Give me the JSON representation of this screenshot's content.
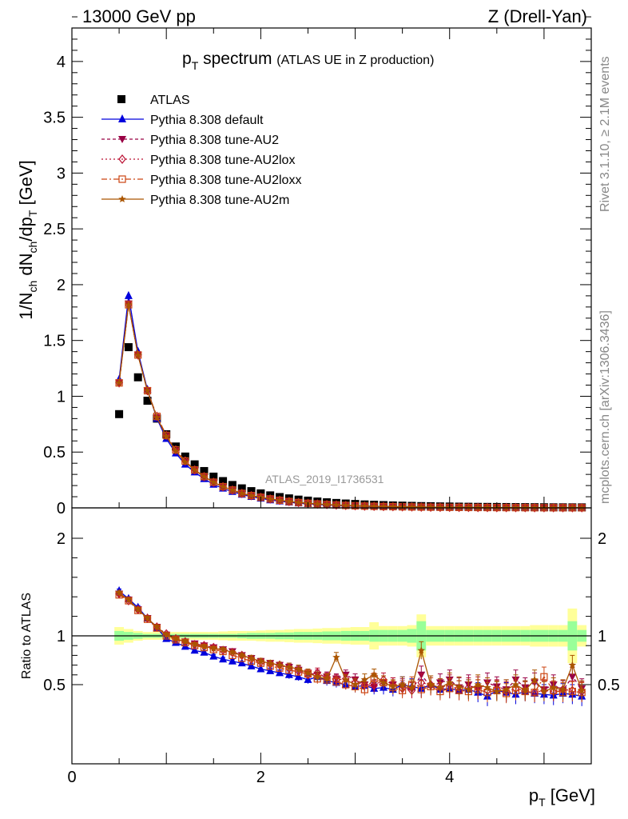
{
  "header": {
    "left": "13000 GeV pp",
    "right": "Z (Drell-Yan)"
  },
  "side_labels": {
    "rivet": "Rivet 3.1.10, ≥ 2.1M events",
    "mcplots": "mcplots.cern.ch [arXiv:1306.3436]"
  },
  "colors": {
    "atlas": "#000000",
    "default": "#0000dd",
    "au2": "#990044",
    "au2lox": "#bb1133",
    "au2loxx": "#cc4411",
    "au2m": "#aa5500",
    "band_inner": "#99ff99",
    "band_outer": "#ffff99"
  },
  "chart_data": [
    {
      "type": "scatter",
      "title_main": "p",
      "title_sub": "T",
      "title_rest": " spectrum",
      "title_note": "(ATLAS UE in Z production)",
      "analysis_label": "ATLAS_2019_I1736531",
      "ylabel": "1/N_ch dN_ch/dp_T [GeV]",
      "xlim": [
        0,
        5.5
      ],
      "ylim": [
        0,
        4.3
      ],
      "yticks": [
        "0",
        "0.5",
        "1",
        "1.5",
        "2",
        "2.5",
        "3",
        "3.5",
        "4"
      ],
      "legend_position": "top-left",
      "x": [
        0.5,
        0.6,
        0.7,
        0.8,
        0.9,
        1.0,
        1.1,
        1.2,
        1.3,
        1.4,
        1.5,
        1.6,
        1.7,
        1.8,
        1.9,
        2.0,
        2.1,
        2.2,
        2.3,
        2.4,
        2.5,
        2.6,
        2.7,
        2.8,
        2.9,
        3.0,
        3.1,
        3.2,
        3.3,
        3.4,
        3.5,
        3.6,
        3.7,
        3.8,
        3.9,
        4.0,
        4.1,
        4.2,
        4.3,
        4.4,
        4.5,
        4.6,
        4.7,
        4.8,
        4.9,
        5.0,
        5.1,
        5.2,
        5.3,
        5.4
      ],
      "series": [
        {
          "name": "ATLAS",
          "values": [
            0.84,
            1.44,
            1.17,
            0.96,
            0.8,
            0.66,
            0.55,
            0.46,
            0.39,
            0.33,
            0.28,
            0.24,
            0.205,
            0.175,
            0.15,
            0.13,
            0.112,
            0.097,
            0.085,
            0.074,
            0.065,
            0.057,
            0.05,
            0.044,
            0.039,
            0.035,
            0.031,
            0.028,
            0.025,
            0.022,
            0.02,
            0.018,
            0.016,
            0.015,
            0.013,
            0.012,
            0.011,
            0.01,
            0.009,
            0.0085,
            0.008,
            0.0075,
            0.007,
            0.0065,
            0.006,
            0.0055,
            0.005,
            0.0048,
            0.0046,
            0.0044
          ]
        },
        {
          "name": "Pythia 8.308 default",
          "values": [
            1.15,
            1.9,
            1.4,
            1.06,
            0.8,
            0.62,
            0.49,
            0.39,
            0.32,
            0.26,
            0.21,
            0.175,
            0.145,
            0.12,
            0.1,
            0.085,
            0.07,
            0.06,
            0.05,
            0.042,
            0.036,
            0.031,
            0.026,
            0.022,
            0.019,
            0.016,
            0.014,
            0.012,
            0.011,
            0.009,
            0.008,
            0.007,
            0.006,
            0.0055,
            0.005,
            0.0045,
            0.004,
            0.0036,
            0.0033,
            0.003,
            0.0027,
            0.0025,
            0.0023,
            0.0021,
            0.0019,
            0.0017,
            0.0016,
            0.0015,
            0.0014,
            0.0013
          ]
        },
        {
          "name": "Pythia 8.308 tune-AU2",
          "values": [
            1.12,
            1.83,
            1.37,
            1.05,
            0.81,
            0.64,
            0.51,
            0.41,
            0.34,
            0.28,
            0.23,
            0.19,
            0.16,
            0.13,
            0.11,
            0.095,
            0.08,
            0.068,
            0.057,
            0.048,
            0.041,
            0.035,
            0.03,
            0.026,
            0.022,
            0.019,
            0.016,
            0.014,
            0.012,
            0.011,
            0.0095,
            0.0083,
            0.0072,
            0.0063,
            0.0055,
            0.0049,
            0.0043,
            0.0038,
            0.0034,
            0.003,
            0.0027,
            0.0024,
            0.0022,
            0.002,
            0.0018,
            0.0016,
            0.0015,
            0.0014,
            0.0013,
            0.0012
          ]
        },
        {
          "name": "Pythia 8.308 tune-AU2lox",
          "values": [
            1.12,
            1.82,
            1.37,
            1.05,
            0.82,
            0.65,
            0.52,
            0.42,
            0.34,
            0.28,
            0.23,
            0.19,
            0.16,
            0.13,
            0.11,
            0.095,
            0.08,
            0.068,
            0.057,
            0.048,
            0.041,
            0.035,
            0.03,
            0.026,
            0.022,
            0.019,
            0.016,
            0.014,
            0.012,
            0.011,
            0.0095,
            0.0083,
            0.0072,
            0.0063,
            0.0055,
            0.0049,
            0.0043,
            0.0038,
            0.0034,
            0.003,
            0.0027,
            0.0024,
            0.0022,
            0.002,
            0.0018,
            0.0016,
            0.0015,
            0.0014,
            0.0013,
            0.0012
          ]
        },
        {
          "name": "Pythia 8.308 tune-AU2loxx",
          "values": [
            1.12,
            1.82,
            1.37,
            1.05,
            0.82,
            0.65,
            0.52,
            0.42,
            0.34,
            0.28,
            0.23,
            0.19,
            0.16,
            0.13,
            0.11,
            0.095,
            0.08,
            0.068,
            0.057,
            0.048,
            0.041,
            0.035,
            0.03,
            0.026,
            0.022,
            0.019,
            0.016,
            0.014,
            0.012,
            0.011,
            0.0095,
            0.0083,
            0.0072,
            0.0063,
            0.0055,
            0.0049,
            0.0043,
            0.0038,
            0.0034,
            0.003,
            0.0027,
            0.0024,
            0.0022,
            0.002,
            0.0018,
            0.0016,
            0.0015,
            0.0014,
            0.0013,
            0.0012
          ]
        },
        {
          "name": "Pythia 8.308 tune-AU2m",
          "values": [
            1.12,
            1.82,
            1.37,
            1.05,
            0.81,
            0.64,
            0.51,
            0.41,
            0.34,
            0.28,
            0.23,
            0.19,
            0.16,
            0.13,
            0.11,
            0.095,
            0.08,
            0.068,
            0.057,
            0.048,
            0.041,
            0.035,
            0.03,
            0.026,
            0.022,
            0.019,
            0.016,
            0.014,
            0.012,
            0.011,
            0.0095,
            0.0083,
            0.0072,
            0.0063,
            0.0055,
            0.0049,
            0.0043,
            0.0038,
            0.0034,
            0.003,
            0.0027,
            0.0024,
            0.0022,
            0.002,
            0.0018,
            0.0016,
            0.0015,
            0.0014,
            0.0013,
            0.0012
          ]
        }
      ]
    },
    {
      "type": "line",
      "ylabel": "Ratio to ATLAS",
      "xlabel": "p_T [GeV]",
      "xlim": [
        0,
        5.5
      ],
      "ylim": [
        0.35,
        2.25
      ],
      "yticks": [
        "0.5",
        "1",
        "2"
      ],
      "xticks": [
        "0",
        "2",
        "4"
      ],
      "x": [
        0.5,
        0.6,
        0.7,
        0.8,
        0.9,
        1.0,
        1.1,
        1.2,
        1.3,
        1.4,
        1.5,
        1.6,
        1.7,
        1.8,
        1.9,
        2.0,
        2.1,
        2.2,
        2.3,
        2.4,
        2.5,
        2.6,
        2.7,
        2.8,
        2.9,
        3.0,
        3.1,
        3.2,
        3.3,
        3.4,
        3.5,
        3.6,
        3.7,
        3.8,
        3.9,
        4.0,
        4.1,
        4.2,
        4.3,
        4.4,
        4.5,
        4.6,
        4.7,
        4.8,
        4.9,
        5.0,
        5.1,
        5.2,
        5.3,
        5.4
      ],
      "band_inner": [
        0.05,
        0.04,
        0.03,
        0.02,
        0.02,
        0.02,
        0.02,
        0.02,
        0.02,
        0.02,
        0.02,
        0.02,
        0.02,
        0.025,
        0.03,
        0.03,
        0.03,
        0.035,
        0.035,
        0.04,
        0.04,
        0.04,
        0.045,
        0.045,
        0.05,
        0.05,
        0.05,
        0.06,
        0.06,
        0.06,
        0.06,
        0.07,
        0.15,
        0.06,
        0.06,
        0.06,
        0.06,
        0.06,
        0.06,
        0.06,
        0.06,
        0.06,
        0.06,
        0.06,
        0.06,
        0.06,
        0.06,
        0.06,
        0.15,
        0.06
      ],
      "band_outer": [
        0.09,
        0.07,
        0.05,
        0.04,
        0.04,
        0.04,
        0.04,
        0.04,
        0.04,
        0.04,
        0.04,
        0.045,
        0.05,
        0.05,
        0.05,
        0.055,
        0.06,
        0.06,
        0.065,
        0.07,
        0.07,
        0.075,
        0.08,
        0.08,
        0.085,
        0.09,
        0.09,
        0.14,
        0.1,
        0.1,
        0.1,
        0.11,
        0.22,
        0.1,
        0.1,
        0.1,
        0.1,
        0.1,
        0.1,
        0.1,
        0.1,
        0.1,
        0.1,
        0.1,
        0.11,
        0.11,
        0.11,
        0.11,
        0.28,
        0.11
      ],
      "series": [
        {
          "name": "Pythia 8.308 default",
          "values": [
            1.46,
            1.38,
            1.29,
            1.18,
            1.08,
            0.97,
            0.93,
            0.89,
            0.85,
            0.83,
            0.79,
            0.76,
            0.74,
            0.72,
            0.69,
            0.66,
            0.64,
            0.62,
            0.6,
            0.58,
            0.55,
            0.58,
            0.54,
            0.52,
            0.5,
            0.48,
            0.49,
            0.46,
            0.47,
            0.45,
            0.5,
            0.48,
            0.46,
            0.5,
            0.45,
            0.46,
            0.44,
            0.45,
            0.42,
            0.38,
            0.44,
            0.42,
            0.4,
            0.43,
            0.41,
            0.4,
            0.39,
            0.41,
            0.4,
            0.38
          ],
          "errors": [
            0.02,
            0.02,
            0.02,
            0.02,
            0.02,
            0.02,
            0.02,
            0.02,
            0.02,
            0.02,
            0.02,
            0.02,
            0.02,
            0.02,
            0.03,
            0.03,
            0.03,
            0.03,
            0.04,
            0.04,
            0.04,
            0.05,
            0.05,
            0.05,
            0.05,
            0.06,
            0.06,
            0.06,
            0.07,
            0.07,
            0.08,
            0.08,
            0.09,
            0.09,
            0.09,
            0.1,
            0.1,
            0.1,
            0.1,
            0.1,
            0.1,
            0.1,
            0.1,
            0.1,
            0.1,
            0.1,
            0.1,
            0.1,
            0.1,
            0.1
          ]
        },
        {
          "name": "Pythia 8.308 tune-AU2",
          "values": [
            1.43,
            1.37,
            1.27,
            1.18,
            1.09,
            1.01,
            0.97,
            0.94,
            0.92,
            0.9,
            0.88,
            0.86,
            0.84,
            0.8,
            0.77,
            0.74,
            0.72,
            0.7,
            0.68,
            0.65,
            0.62,
            0.6,
            0.58,
            0.56,
            0.6,
            0.55,
            0.5,
            0.48,
            0.52,
            0.5,
            0.48,
            0.45,
            0.6,
            0.48,
            0.52,
            0.55,
            0.47,
            0.5,
            0.45,
            0.52,
            0.48,
            0.45,
            0.55,
            0.47,
            0.52,
            0.45,
            0.5,
            0.44,
            0.58,
            0.46
          ],
          "errors": [
            0.02,
            0.02,
            0.02,
            0.02,
            0.02,
            0.02,
            0.02,
            0.02,
            0.02,
            0.02,
            0.02,
            0.02,
            0.02,
            0.02,
            0.03,
            0.03,
            0.03,
            0.03,
            0.04,
            0.04,
            0.04,
            0.05,
            0.05,
            0.05,
            0.05,
            0.06,
            0.06,
            0.06,
            0.07,
            0.07,
            0.08,
            0.08,
            0.09,
            0.09,
            0.09,
            0.1,
            0.1,
            0.1,
            0.1,
            0.1,
            0.1,
            0.1,
            0.1,
            0.1,
            0.1,
            0.1,
            0.1,
            0.1,
            0.1,
            0.1
          ]
        },
        {
          "name": "Pythia 8.308 tune-AU2lox",
          "values": [
            1.43,
            1.36,
            1.27,
            1.18,
            1.09,
            1.02,
            0.97,
            0.94,
            0.91,
            0.9,
            0.88,
            0.85,
            0.83,
            0.8,
            0.76,
            0.73,
            0.71,
            0.7,
            0.67,
            0.64,
            0.6,
            0.62,
            0.57,
            0.55,
            0.56,
            0.52,
            0.5,
            0.49,
            0.55,
            0.5,
            0.46,
            0.44,
            0.52,
            0.5,
            0.47,
            0.5,
            0.44,
            0.47,
            0.48,
            0.44,
            0.45,
            0.43,
            0.46,
            0.44,
            0.42,
            0.44,
            0.43,
            0.45,
            0.44,
            0.43
          ],
          "errors": [
            0.02,
            0.02,
            0.02,
            0.02,
            0.02,
            0.02,
            0.02,
            0.02,
            0.02,
            0.02,
            0.02,
            0.02,
            0.02,
            0.02,
            0.03,
            0.03,
            0.03,
            0.03,
            0.04,
            0.04,
            0.04,
            0.05,
            0.05,
            0.05,
            0.05,
            0.06,
            0.06,
            0.06,
            0.07,
            0.07,
            0.08,
            0.08,
            0.09,
            0.09,
            0.09,
            0.1,
            0.1,
            0.1,
            0.1,
            0.1,
            0.1,
            0.1,
            0.1,
            0.1,
            0.1,
            0.1,
            0.1,
            0.1,
            0.1,
            0.1
          ]
        },
        {
          "name": "Pythia 8.308 tune-AU2loxx",
          "values": [
            1.42,
            1.36,
            1.26,
            1.17,
            1.08,
            1.0,
            0.96,
            0.93,
            0.9,
            0.88,
            0.86,
            0.84,
            0.8,
            0.77,
            0.74,
            0.72,
            0.69,
            0.67,
            0.65,
            0.63,
            0.61,
            0.56,
            0.55,
            0.53,
            0.5,
            0.48,
            0.45,
            0.56,
            0.52,
            0.47,
            0.44,
            0.5,
            0.45,
            0.48,
            0.43,
            0.46,
            0.44,
            0.43,
            0.45,
            0.42,
            0.44,
            0.41,
            0.44,
            0.43,
            0.42,
            0.58,
            0.44,
            0.42,
            0.43,
            0.42
          ],
          "errors": [
            0.02,
            0.02,
            0.02,
            0.02,
            0.02,
            0.02,
            0.02,
            0.02,
            0.02,
            0.02,
            0.02,
            0.02,
            0.02,
            0.02,
            0.03,
            0.03,
            0.03,
            0.03,
            0.04,
            0.04,
            0.04,
            0.05,
            0.05,
            0.05,
            0.05,
            0.06,
            0.06,
            0.06,
            0.07,
            0.07,
            0.08,
            0.08,
            0.09,
            0.09,
            0.09,
            0.1,
            0.1,
            0.1,
            0.1,
            0.1,
            0.1,
            0.1,
            0.1,
            0.1,
            0.1,
            0.1,
            0.1,
            0.1,
            0.1,
            0.1
          ]
        },
        {
          "name": "Pythia 8.308 tune-AU2m",
          "values": [
            1.44,
            1.37,
            1.27,
            1.18,
            1.09,
            1.01,
            0.97,
            0.94,
            0.91,
            0.89,
            0.87,
            0.86,
            0.83,
            0.8,
            0.77,
            0.74,
            0.72,
            0.7,
            0.68,
            0.66,
            0.62,
            0.58,
            0.56,
            0.78,
            0.55,
            0.5,
            0.55,
            0.6,
            0.52,
            0.48,
            0.5,
            0.47,
            0.85,
            0.5,
            0.47,
            0.52,
            0.48,
            0.45,
            0.5,
            0.47,
            0.43,
            0.45,
            0.5,
            0.44,
            0.55,
            0.43,
            0.47,
            0.45,
            0.7,
            0.44
          ],
          "errors": [
            0.02,
            0.02,
            0.02,
            0.02,
            0.02,
            0.02,
            0.02,
            0.02,
            0.02,
            0.02,
            0.02,
            0.02,
            0.02,
            0.02,
            0.03,
            0.03,
            0.03,
            0.03,
            0.04,
            0.04,
            0.04,
            0.05,
            0.05,
            0.05,
            0.05,
            0.06,
            0.06,
            0.06,
            0.07,
            0.07,
            0.08,
            0.08,
            0.09,
            0.09,
            0.09,
            0.1,
            0.1,
            0.1,
            0.1,
            0.1,
            0.1,
            0.1,
            0.1,
            0.1,
            0.1,
            0.1,
            0.1,
            0.1,
            0.1,
            0.1
          ]
        }
      ]
    }
  ]
}
